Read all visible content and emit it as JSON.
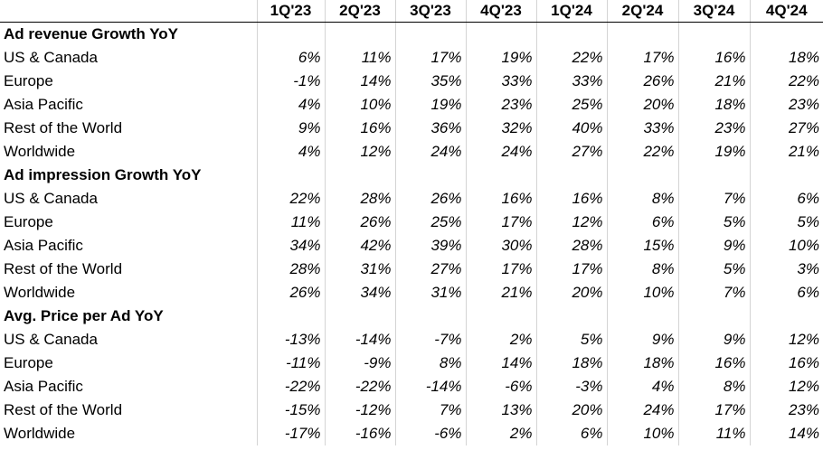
{
  "header": {
    "quarters": [
      "1Q'23",
      "2Q'23",
      "3Q'23",
      "4Q'23",
      "1Q'24",
      "2Q'24",
      "3Q'24",
      "4Q'24"
    ]
  },
  "sections": [
    {
      "title": "Ad revenue Growth YoY",
      "rows": [
        {
          "region": "US & Canada",
          "values": [
            "6%",
            "11%",
            "17%",
            "19%",
            "22%",
            "17%",
            "16%",
            "18%"
          ]
        },
        {
          "region": "Europe",
          "values": [
            "-1%",
            "14%",
            "35%",
            "33%",
            "33%",
            "26%",
            "21%",
            "22%"
          ]
        },
        {
          "region": "Asia Pacific",
          "values": [
            "4%",
            "10%",
            "19%",
            "23%",
            "25%",
            "20%",
            "18%",
            "23%"
          ]
        },
        {
          "region": "Rest of the World",
          "values": [
            "9%",
            "16%",
            "36%",
            "32%",
            "40%",
            "33%",
            "23%",
            "27%"
          ]
        },
        {
          "region": "Worldwide",
          "values": [
            "4%",
            "12%",
            "24%",
            "24%",
            "27%",
            "22%",
            "19%",
            "21%"
          ]
        }
      ]
    },
    {
      "title": "Ad impression Growth YoY",
      "rows": [
        {
          "region": "US & Canada",
          "values": [
            "22%",
            "28%",
            "26%",
            "16%",
            "16%",
            "8%",
            "7%",
            "6%"
          ]
        },
        {
          "region": "Europe",
          "values": [
            "11%",
            "26%",
            "25%",
            "17%",
            "12%",
            "6%",
            "5%",
            "5%"
          ]
        },
        {
          "region": "Asia Pacific",
          "values": [
            "34%",
            "42%",
            "39%",
            "30%",
            "28%",
            "15%",
            "9%",
            "10%"
          ]
        },
        {
          "region": "Rest of the World",
          "values": [
            "28%",
            "31%",
            "27%",
            "17%",
            "17%",
            "8%",
            "5%",
            "3%"
          ]
        },
        {
          "region": "Worldwide",
          "values": [
            "26%",
            "34%",
            "31%",
            "21%",
            "20%",
            "10%",
            "7%",
            "6%"
          ]
        }
      ]
    },
    {
      "title": "Avg. Price per Ad YoY",
      "rows": [
        {
          "region": "US & Canada",
          "values": [
            "-13%",
            "-14%",
            "-7%",
            "2%",
            "5%",
            "9%",
            "9%",
            "12%"
          ]
        },
        {
          "region": "Europe",
          "values": [
            "-11%",
            "-9%",
            "8%",
            "14%",
            "18%",
            "18%",
            "16%",
            "16%"
          ]
        },
        {
          "region": "Asia Pacific",
          "values": [
            "-22%",
            "-22%",
            "-14%",
            "-6%",
            "-3%",
            "4%",
            "8%",
            "12%"
          ]
        },
        {
          "region": "Rest of the World",
          "values": [
            "-15%",
            "-12%",
            "7%",
            "13%",
            "20%",
            "24%",
            "17%",
            "23%"
          ]
        },
        {
          "region": "Worldwide",
          "values": [
            "-17%",
            "-16%",
            "-6%",
            "2%",
            "6%",
            "10%",
            "11%",
            "14%"
          ]
        }
      ]
    }
  ]
}
